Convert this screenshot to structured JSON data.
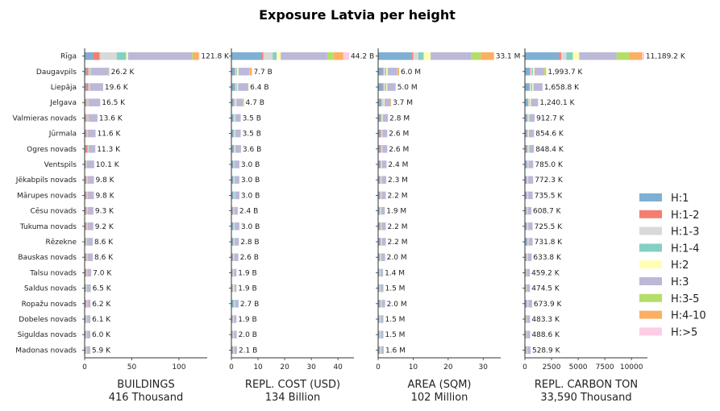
{
  "chart_data": {
    "type": "bar",
    "title": "Exposure Latvia per height",
    "regions": [
      "Rīga",
      "Daugavpils",
      "Liepāja",
      "Jelgava",
      "Valmieras novads",
      "Jūrmala",
      "Ogres novads",
      "Ventspils",
      "Jēkabpils novads",
      "Mārupes novads",
      "Cēsu novads",
      "Tukuma novads",
      "Rēzekne",
      "Bauskas novads",
      "Talsu novads",
      "Saldus novads",
      "Ropažu novads",
      "Dobeles novads",
      "Siguldas novads",
      "Madonas novads"
    ],
    "height_classes": [
      {
        "name": "H:1",
        "color": "#7fafd2"
      },
      {
        "name": "H:1-2",
        "color": "#f47e70"
      },
      {
        "name": "H:1-3",
        "color": "#d9d9d9"
      },
      {
        "name": "H:1-4",
        "color": "#84d0c3"
      },
      {
        "name": "H:2",
        "color": "#ffffb4"
      },
      {
        "name": "H:3",
        "color": "#bcb8d8"
      },
      {
        "name": "H:3-5",
        "color": "#b4de6a"
      },
      {
        "name": "H:4-10",
        "color": "#fbb061"
      },
      {
        "name": "H:>5",
        "color": "#fccde4"
      }
    ],
    "panels": [
      {
        "xlabel": "BUILDINGS",
        "total": "416 Thousand",
        "xlim": [
          0,
          130
        ],
        "ticks": [
          0,
          50,
          100
        ],
        "tick_labels": [
          "0",
          "50",
          "100"
        ],
        "labels": [
          "121.8 K",
          "26.2 K",
          "19.6 K",
          "16.5 K",
          "13.6 K",
          "11.6 K",
          "11.3 K",
          "10.1 K",
          "9.8 K",
          "9.8 K",
          "9.3 K",
          "9.2 K",
          "8.6 K",
          "8.6 K",
          "7.0 K",
          "6.5 K",
          "6.2 K",
          "6.1 K",
          "6.0 K",
          "5.9 K"
        ],
        "values": [
          [
            9,
            7,
            18,
            10,
            2,
            68,
            1,
            6,
            0.8
          ],
          [
            2,
            2,
            1,
            1,
            0.5,
            19,
            0.3,
            0.4,
            0
          ],
          [
            2,
            2,
            1,
            0.5,
            0.2,
            13.9,
            0,
            0,
            0
          ],
          [
            1,
            1,
            1,
            0.5,
            0.2,
            12.8,
            0,
            0,
            0
          ],
          [
            1,
            1,
            1,
            0.5,
            0.2,
            9.9,
            0,
            0,
            0
          ],
          [
            1,
            1,
            1,
            0.3,
            0.1,
            8.2,
            0,
            0,
            0
          ],
          [
            1,
            2,
            1,
            0.3,
            0.1,
            6.9,
            0,
            0,
            0
          ],
          [
            1,
            0.5,
            0.5,
            0.3,
            0.1,
            7.7,
            0,
            0,
            0
          ],
          [
            1,
            1,
            1,
            0.3,
            0.1,
            6.4,
            0,
            0,
            0
          ],
          [
            1,
            1,
            1,
            0.3,
            0.1,
            6.4,
            0,
            0,
            0
          ],
          [
            1,
            1,
            1,
            0.3,
            0.1,
            5.9,
            0,
            0,
            0
          ],
          [
            1,
            1,
            1,
            0.3,
            0.1,
            5.8,
            0,
            0,
            0
          ],
          [
            1,
            0.5,
            0.5,
            0.3,
            0.1,
            6.2,
            0,
            0,
            0
          ],
          [
            1,
            1,
            1,
            0.3,
            0.1,
            5.2,
            0,
            0,
            0
          ],
          [
            1,
            1,
            0.5,
            0.3,
            0.1,
            4.1,
            0,
            0,
            0
          ],
          [
            1,
            0.5,
            0.5,
            0.3,
            0.1,
            4.1,
            0,
            0,
            0
          ],
          [
            1,
            1,
            0.5,
            0.3,
            0.1,
            3.3,
            0,
            0,
            0
          ],
          [
            1,
            0.5,
            0.5,
            0.3,
            0.1,
            3.7,
            0,
            0,
            0
          ],
          [
            1,
            0.5,
            0.5,
            0.3,
            0.1,
            3.6,
            0,
            0,
            0
          ],
          [
            1,
            0.5,
            0.5,
            0.3,
            0.1,
            3.5,
            0,
            0,
            0
          ]
        ]
      },
      {
        "xlabel": "REPL. COST (USD)",
        "total": "134 Billion",
        "xlim": [
          0,
          46
        ],
        "ticks": [
          0,
          10,
          20,
          30,
          40
        ],
        "tick_labels": [
          "0",
          "10",
          "20",
          "30",
          "40"
        ],
        "labels": [
          "44.2 B",
          "7.7 B",
          "6.4 B",
          "4.7 B",
          "3.5 B",
          "3.5 B",
          "3.6 B",
          "3.0 B",
          "3.0 B",
          "3.0 B",
          "2.4 B",
          "3.0 B",
          "2.8 B",
          "2.6 B",
          "1.9 B",
          "1.9 B",
          "2.7 B",
          "1.9 B",
          "2.0 B",
          "2.1 B"
        ],
        "values": [
          [
            11.5,
            0.5,
            3.5,
            1.5,
            1.5,
            17.5,
            2.5,
            3.5,
            2.2
          ],
          [
            1.2,
            0.2,
            0.5,
            0.3,
            0.5,
            4.0,
            0.2,
            0.8,
            0
          ],
          [
            1.2,
            0.2,
            0.5,
            0.3,
            0.3,
            3.7,
            0.2,
            0,
            0
          ],
          [
            0.8,
            0.2,
            0.3,
            0.2,
            0.3,
            2.5,
            0.1,
            0.3,
            0
          ],
          [
            0.7,
            0.1,
            0.3,
            0.1,
            0.2,
            2.1,
            0,
            0,
            0
          ],
          [
            0.6,
            0.2,
            0.3,
            0.1,
            0.2,
            2.1,
            0,
            0,
            0
          ],
          [
            0.6,
            0.3,
            0.3,
            0.1,
            0.2,
            2.1,
            0,
            0,
            0
          ],
          [
            0.6,
            0.1,
            0.2,
            0.1,
            0.1,
            1.9,
            0,
            0,
            0
          ],
          [
            0.6,
            0.1,
            0.3,
            0.1,
            0.1,
            1.8,
            0,
            0,
            0
          ],
          [
            0.6,
            0.1,
            0.3,
            0.2,
            0.1,
            1.7,
            0,
            0,
            0
          ],
          [
            0.5,
            0.1,
            0.2,
            0.1,
            0.1,
            1.4,
            0,
            0,
            0
          ],
          [
            0.6,
            0.1,
            0.3,
            0.1,
            0.1,
            1.8,
            0,
            0,
            0
          ],
          [
            0.7,
            0.1,
            0.2,
            0.1,
            0.1,
            1.6,
            0,
            0,
            0
          ],
          [
            0.5,
            0.1,
            0.3,
            0.1,
            0.1,
            1.5,
            0,
            0,
            0
          ],
          [
            0.4,
            0.1,
            0.2,
            0.1,
            0.1,
            1.0,
            0,
            0,
            0
          ],
          [
            0.4,
            0.1,
            0.2,
            0.1,
            0.3,
            0.8,
            0,
            0,
            0
          ],
          [
            0.7,
            0.1,
            0.2,
            0.2,
            0.1,
            1.4,
            0,
            0,
            0
          ],
          [
            0.4,
            0.1,
            0.2,
            0.1,
            0.1,
            1.0,
            0,
            0,
            0
          ],
          [
            0.4,
            0.1,
            0.2,
            0.1,
            0.1,
            1.1,
            0,
            0,
            0
          ],
          [
            0.5,
            0.1,
            0.2,
            0.1,
            0.1,
            1.1,
            0,
            0,
            0
          ]
        ]
      },
      {
        "xlabel": "AREA (SQM)",
        "total": "102 Million",
        "xlim": [
          0,
          35
        ],
        "ticks": [
          0,
          10,
          20,
          30
        ],
        "tick_labels": [
          "0",
          "10",
          "20",
          "30"
        ],
        "labels": [
          "33.1 M",
          "6.0 M",
          "5.0 M",
          "3.7 M",
          "2.8 M",
          "2.6 M",
          "2.6 M",
          "2.4 M",
          "2.3 M",
          "2.2 M",
          "1.9 M",
          "2.2 M",
          "2.2 M",
          "2.0 M",
          "1.4 M",
          "1.5 M",
          "2.0 M",
          "1.5 M",
          "1.5 M",
          "1.6 M"
        ],
        "values": [
          [
            9.5,
            0.5,
            1.5,
            1.5,
            2.0,
            11.5,
            2.8,
            3.8,
            0
          ],
          [
            1.3,
            0.2,
            0.5,
            0.3,
            0.4,
            2.8,
            0.2,
            0.3,
            0
          ],
          [
            1.3,
            0.2,
            0.5,
            0.3,
            0.3,
            2.4,
            0,
            0,
            0
          ],
          [
            0.8,
            0.2,
            0.3,
            0.2,
            0.3,
            1.7,
            0,
            0.2,
            0
          ],
          [
            0.7,
            0.1,
            0.2,
            0.1,
            0.2,
            1.5,
            0,
            0,
            0
          ],
          [
            0.6,
            0.2,
            0.2,
            0.1,
            0.1,
            1.4,
            0,
            0,
            0
          ],
          [
            0.6,
            0.2,
            0.2,
            0.1,
            0.1,
            1.4,
            0,
            0,
            0
          ],
          [
            0.6,
            0.1,
            0.2,
            0.1,
            0.1,
            1.3,
            0,
            0,
            0
          ],
          [
            0.5,
            0.1,
            0.2,
            0.1,
            0.1,
            1.3,
            0,
            0,
            0
          ],
          [
            0.5,
            0.1,
            0.2,
            0.1,
            0.1,
            1.2,
            0,
            0,
            0
          ],
          [
            0.4,
            0.1,
            0.2,
            0.1,
            0.1,
            1.0,
            0,
            0,
            0
          ],
          [
            0.5,
            0.1,
            0.2,
            0.1,
            0.1,
            1.2,
            0,
            0,
            0
          ],
          [
            0.6,
            0.1,
            0.2,
            0.1,
            0.1,
            1.1,
            0,
            0,
            0
          ],
          [
            0.4,
            0.1,
            0.2,
            0.1,
            0.1,
            1.1,
            0,
            0,
            0
          ],
          [
            0.3,
            0.1,
            0.1,
            0.1,
            0.1,
            0.7,
            0,
            0,
            0
          ],
          [
            0.3,
            0.1,
            0.1,
            0.1,
            0.1,
            0.8,
            0,
            0,
            0
          ],
          [
            0.5,
            0.1,
            0.2,
            0.1,
            0.1,
            1.0,
            0,
            0,
            0
          ],
          [
            0.3,
            0.1,
            0.1,
            0.1,
            0.1,
            0.8,
            0,
            0,
            0
          ],
          [
            0.3,
            0.1,
            0.1,
            0.1,
            0.1,
            0.8,
            0,
            0,
            0
          ],
          [
            0.4,
            0.1,
            0.1,
            0.1,
            0.1,
            0.8,
            0,
            0,
            0
          ]
        ]
      },
      {
        "xlabel": "REPL. CARBON TON",
        "total": "33,590 Thousand",
        "xlim": [
          0,
          11500
        ],
        "ticks": [
          0,
          2500,
          5000,
          7500,
          10000
        ],
        "tick_labels": [
          "0",
          "2500",
          "5000",
          "7500",
          "10000"
        ],
        "labels": [
          "11,189.2 K",
          "1,993.7 K",
          "1,658.8 K",
          "1,240.1 K",
          "912.7 K",
          "854.6 K",
          "848.4 K",
          "785.0 K",
          "772.3 K",
          "735.5 K",
          "608.7 K",
          "725.5 K",
          "731.8 K",
          "633.8 K",
          "459.2 K",
          "474.5 K",
          "673.9 K",
          "483.3 K",
          "488.6 K",
          "528.9 K"
        ],
        "values": [
          [
            3200,
            200,
            500,
            600,
            600,
            3500,
            1200,
            1200,
            189
          ],
          [
            450,
            50,
            150,
            100,
            150,
            900,
            100,
            94,
            0
          ],
          [
            400,
            50,
            150,
            100,
            100,
            858,
            0,
            0,
            0
          ],
          [
            250,
            50,
            100,
            50,
            100,
            690,
            0,
            0,
            0
          ],
          [
            200,
            30,
            80,
            40,
            60,
            503,
            0,
            0,
            0
          ],
          [
            180,
            30,
            70,
            40,
            50,
            485,
            0,
            0,
            0
          ],
          [
            180,
            60,
            70,
            40,
            50,
            448,
            0,
            0,
            0
          ],
          [
            180,
            20,
            60,
            30,
            40,
            455,
            0,
            0,
            0
          ],
          [
            160,
            20,
            60,
            30,
            40,
            462,
            0,
            0,
            0
          ],
          [
            160,
            20,
            60,
            30,
            40,
            426,
            0,
            0,
            0
          ],
          [
            130,
            20,
            50,
            30,
            30,
            349,
            0,
            0,
            0
          ],
          [
            160,
            20,
            60,
            30,
            40,
            416,
            0,
            0,
            0
          ],
          [
            190,
            20,
            50,
            30,
            40,
            402,
            0,
            0,
            0
          ],
          [
            130,
            30,
            60,
            30,
            30,
            354,
            0,
            0,
            0
          ],
          [
            100,
            20,
            40,
            20,
            20,
            259,
            0,
            0,
            0
          ],
          [
            100,
            20,
            40,
            20,
            20,
            275,
            0,
            0,
            0
          ],
          [
            180,
            20,
            50,
            30,
            40,
            354,
            0,
            0,
            0
          ],
          [
            100,
            20,
            40,
            20,
            20,
            283,
            0,
            0,
            0
          ],
          [
            100,
            20,
            40,
            20,
            20,
            289,
            0,
            0,
            0
          ],
          [
            120,
            20,
            40,
            20,
            30,
            299,
            0,
            0,
            0
          ]
        ]
      }
    ],
    "legend_position": "right"
  }
}
